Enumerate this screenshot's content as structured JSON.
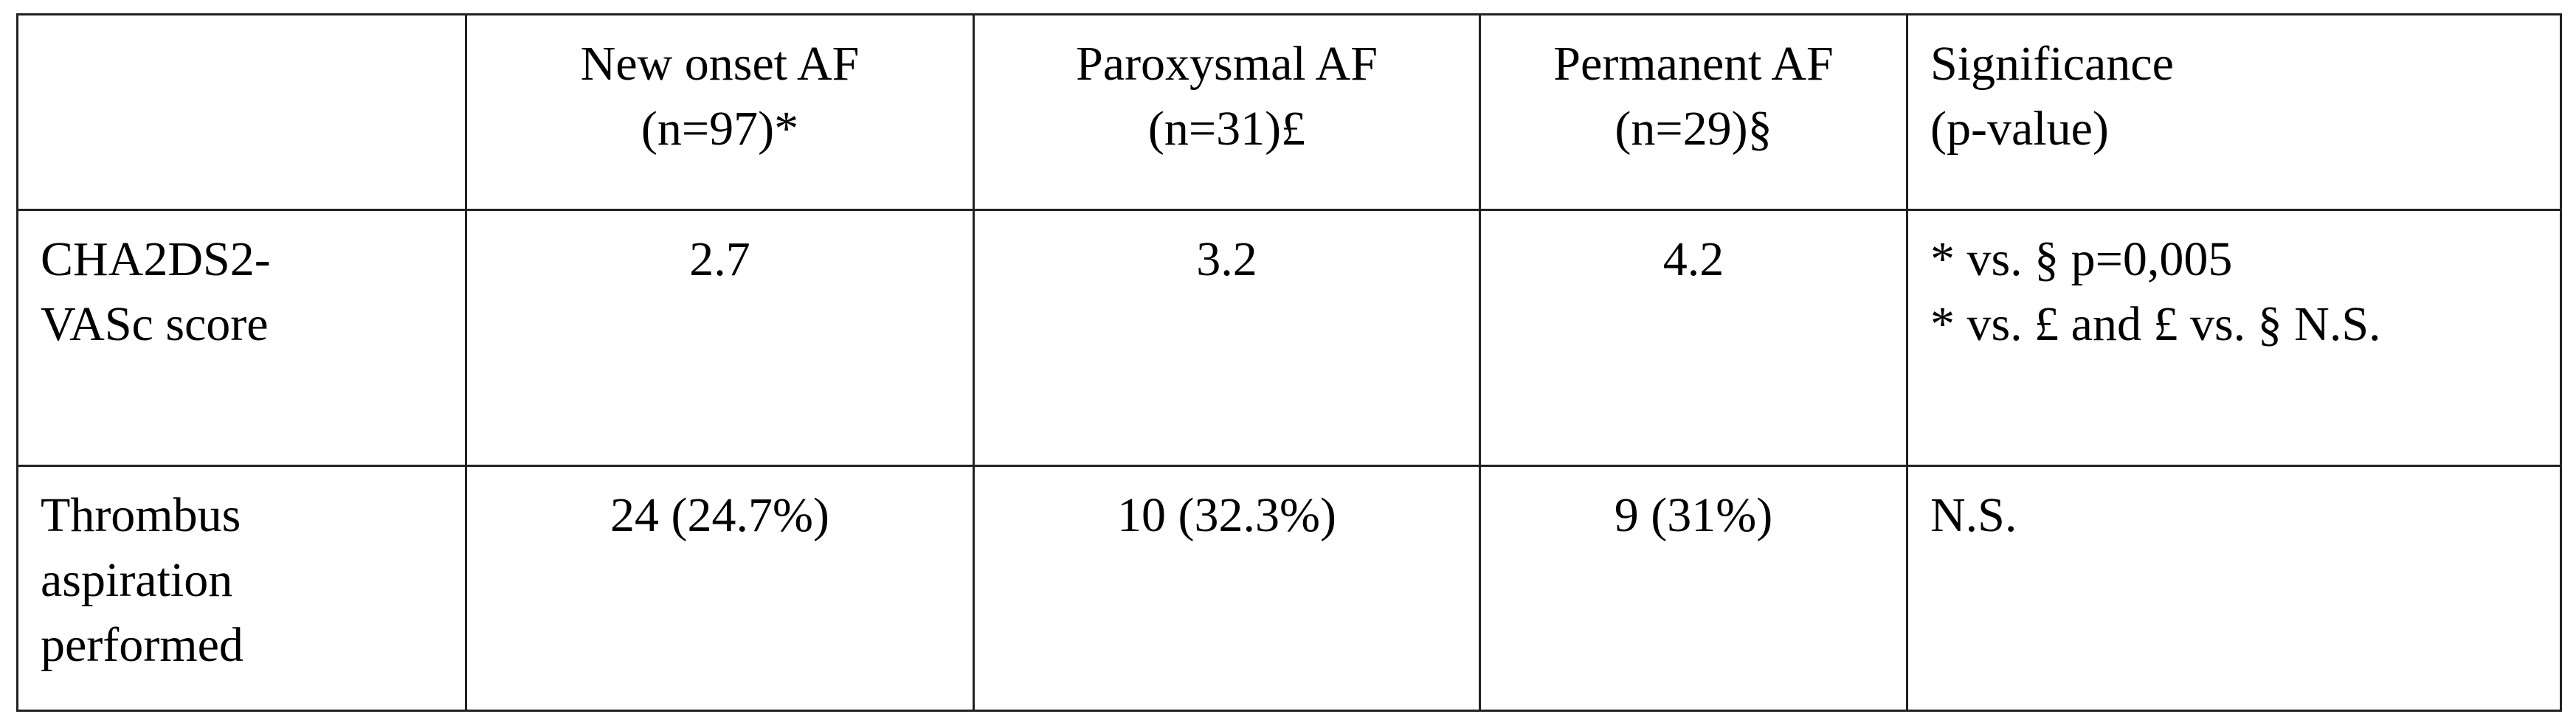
{
  "table": {
    "header": [
      [],
      [
        "New onset AF",
        "(n=97)*"
      ],
      [
        "Paroxysmal AF",
        "(n=31)£"
      ],
      [
        "Permanent AF",
        "(n=29)§"
      ],
      [
        "Significance",
        "(p-value)"
      ]
    ],
    "rows": [
      [
        [
          "CHA2DS2-",
          "VASc score"
        ],
        [
          "2.7"
        ],
        [
          "3.2"
        ],
        [
          "4.2"
        ],
        [
          "* vs. § p=0,005",
          "* vs. £ and £ vs. § N.S."
        ]
      ],
      [
        [
          "Thrombus",
          "aspiration",
          "performed"
        ],
        [
          "24 (24.7%)"
        ],
        [
          "10 (32.3%)"
        ],
        [
          "9 (31%)"
        ],
        [
          "N.S."
        ]
      ]
    ]
  }
}
